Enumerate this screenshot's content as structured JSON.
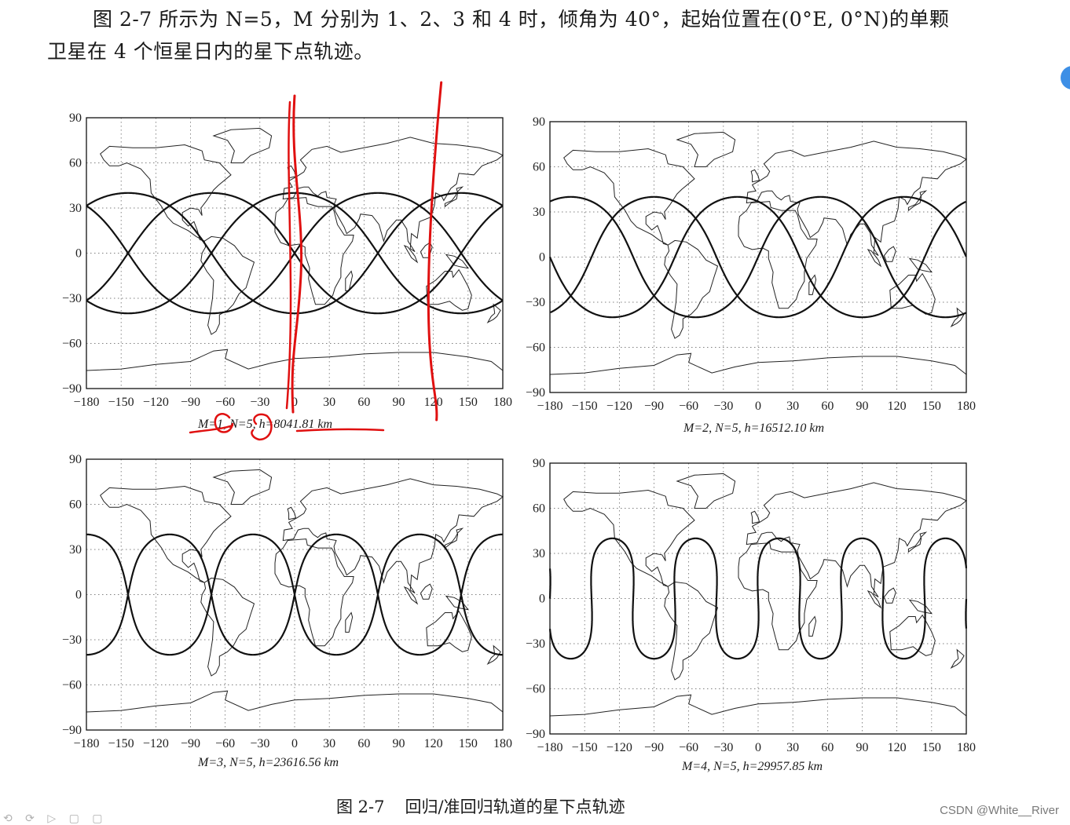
{
  "intro": {
    "line1": "图 2-7 所示为 N=5，M 分别为 1、2、3 和 4 时，倾角为 40°，起始位置在(0°E, 0°N)的单颗",
    "line2": "卫星在 4 个恒星日内的星下点轨迹。"
  },
  "figure_caption": {
    "number": "图 2-7",
    "text": "回归/准回归轨道的星下点轨迹"
  },
  "watermark": "CSDN @White__River",
  "chart_data": [
    {
      "type": "line",
      "subplot_caption": "M=1, N=5, h=8041.81 km",
      "M": 1,
      "N": 5,
      "inclination_deg": 40,
      "xlim": [
        -180,
        180
      ],
      "ylim": [
        -90,
        90
      ],
      "xticks": [
        -180,
        -150,
        -120,
        -90,
        -60,
        -30,
        0,
        30,
        60,
        90,
        120,
        150,
        180
      ],
      "yticks": [
        90,
        60,
        30,
        0,
        -30,
        -60,
        -90
      ],
      "grid": true,
      "series": [
        {
          "description": "ground track over 4 sidereal days",
          "amplitude_lat": 40,
          "crossings_per_360_lon": 2.5
        }
      ]
    },
    {
      "type": "line",
      "subplot_caption": "M=2, N=5, h=16512.10 km",
      "M": 2,
      "N": 5,
      "inclination_deg": 40,
      "xlim": [
        -180,
        180
      ],
      "ylim": [
        -90,
        90
      ],
      "xticks": [
        -180,
        -150,
        -120,
        -90,
        -60,
        -30,
        0,
        30,
        60,
        90,
        120,
        150,
        180
      ],
      "yticks": [
        90,
        60,
        30,
        0,
        -30,
        -60,
        -90
      ],
      "grid": true,
      "series": [
        {
          "description": "ground track over 4 sidereal days",
          "amplitude_lat": 40
        }
      ]
    },
    {
      "type": "line",
      "subplot_caption": "M=3, N=5, h=23616.56 km",
      "M": 3,
      "N": 5,
      "inclination_deg": 40,
      "xlim": [
        -180,
        180
      ],
      "ylim": [
        -90,
        90
      ],
      "xticks": [
        -180,
        -150,
        -120,
        -90,
        -60,
        -30,
        0,
        30,
        60,
        90,
        120,
        150,
        180
      ],
      "yticks": [
        90,
        60,
        30,
        0,
        -30,
        -60,
        -90
      ],
      "grid": true,
      "series": [
        {
          "description": "ground track over 4 sidereal days",
          "amplitude_lat": 40
        }
      ]
    },
    {
      "type": "line",
      "subplot_caption": "M=4, N=5, h=29957.85 km",
      "M": 4,
      "N": 5,
      "inclination_deg": 40,
      "xlim": [
        -180,
        180
      ],
      "ylim": [
        -90,
        90
      ],
      "xticks": [
        -180,
        -150,
        -120,
        -90,
        -60,
        -30,
        0,
        30,
        60,
        90,
        120,
        150,
        180
      ],
      "yticks": [
        90,
        60,
        30,
        0,
        -30,
        -60,
        -90
      ],
      "grid": true,
      "series": [
        {
          "description": "ground track over 4 sidereal days",
          "amplitude_lat": 40
        }
      ]
    }
  ],
  "annotations": {
    "color": "#e01010",
    "vertical_marks_lon": [
      0,
      120
    ],
    "circled_terms": [
      "1",
      "5"
    ],
    "underlined_term": "8041.81 km"
  }
}
